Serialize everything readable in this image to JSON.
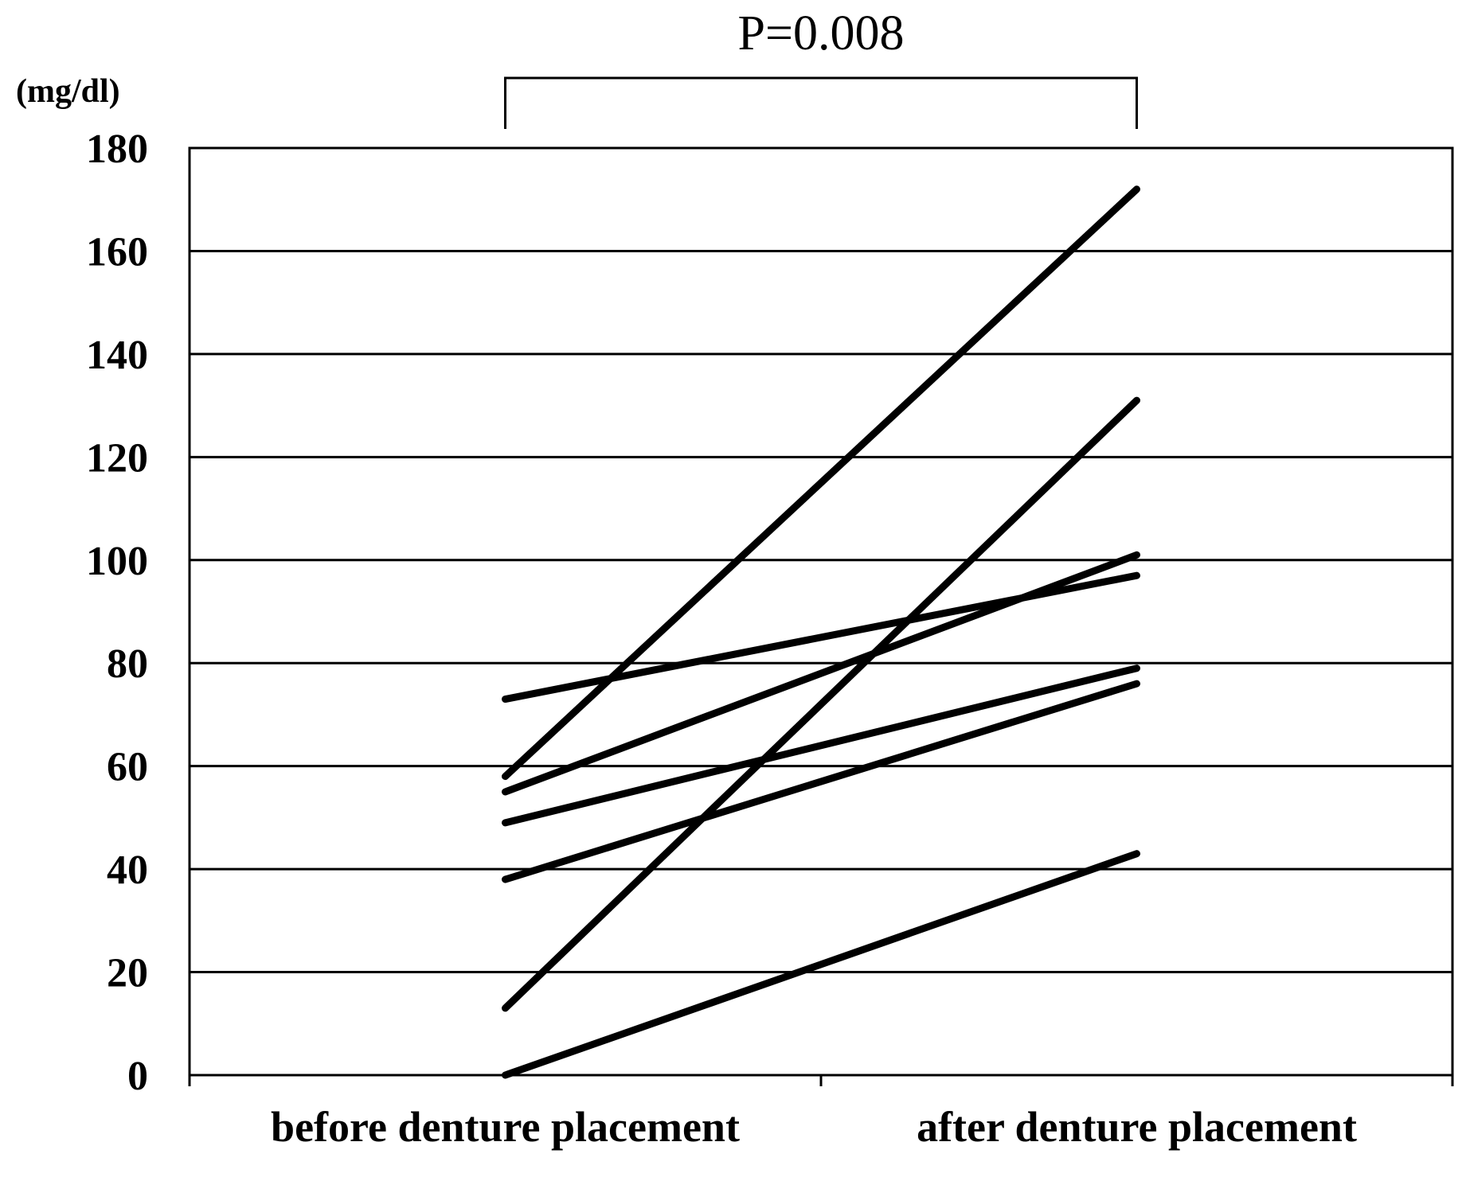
{
  "chart_data": {
    "type": "line",
    "title": "",
    "ylabel": "(mg/dl)",
    "xlabel": "",
    "categories": [
      "before denture placement",
      "after denture placement"
    ],
    "ylim": [
      0,
      180
    ],
    "yticks": [
      0,
      20,
      40,
      60,
      80,
      100,
      120,
      140,
      160,
      180
    ],
    "grid": true,
    "legend": "none",
    "annotation": "P=0.008",
    "line_color": "#000000",
    "series": [
      {
        "values": [
          58,
          172
        ]
      },
      {
        "values": [
          13,
          131
        ]
      },
      {
        "values": [
          73,
          97
        ]
      },
      {
        "values": [
          55,
          101
        ]
      },
      {
        "values": [
          49,
          79
        ]
      },
      {
        "values": [
          38,
          76
        ]
      },
      {
        "values": [
          0,
          43
        ]
      }
    ]
  }
}
